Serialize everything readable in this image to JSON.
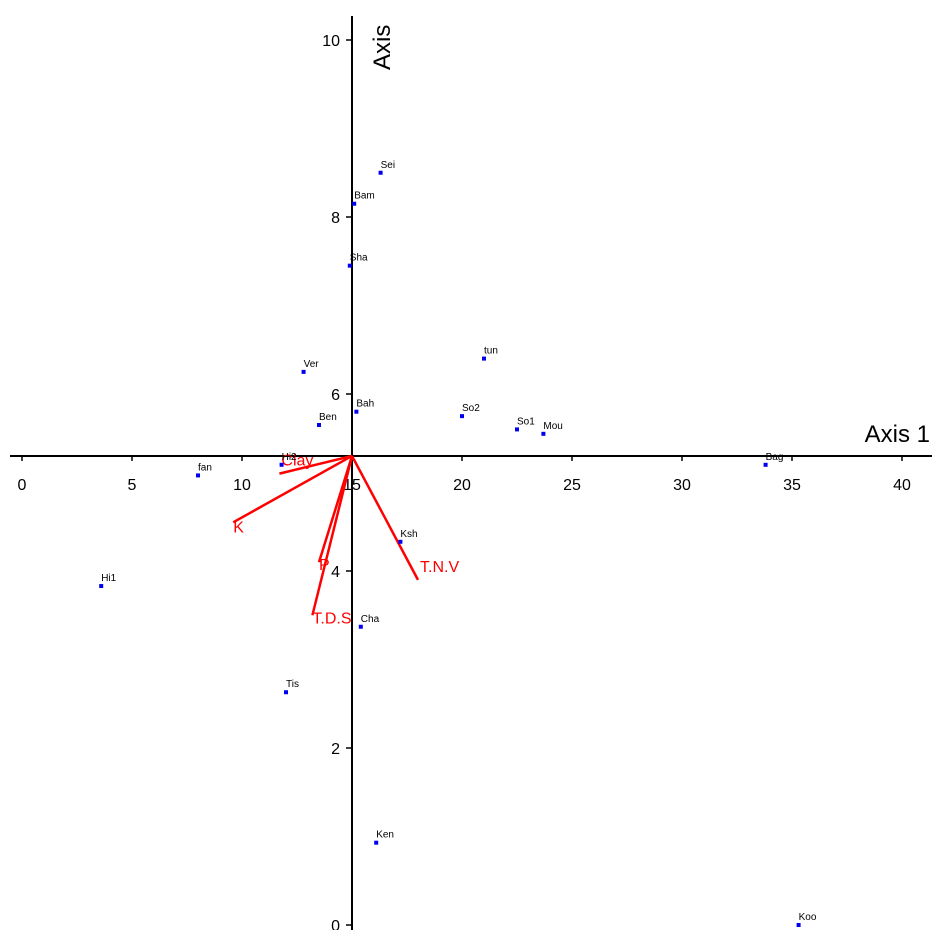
{
  "chart_data": {
    "type": "scatter",
    "xlabel": "Axis 1",
    "ylabel": "Axis",
    "xlim": [
      -0.3,
      41.2
    ],
    "ylim": [
      0,
      10.3
    ],
    "origin": [
      15,
      5.3
    ],
    "x_ticks": [
      "0",
      "5",
      "10",
      "15",
      "20",
      "25",
      "30",
      "35",
      "40"
    ],
    "x_tick_values": [
      0,
      5,
      10,
      15,
      20,
      25,
      30,
      35,
      40
    ],
    "y_ticks": [
      "0",
      "2",
      "4",
      "6",
      "8",
      "10"
    ],
    "y_tick_values": [
      0,
      2,
      4,
      6,
      8,
      10
    ],
    "grid": false,
    "point_color": "#0000ee",
    "vector_color": "#ff0000",
    "points": [
      {
        "label": "Sei",
        "x": 16.3,
        "y": 8.5
      },
      {
        "label": "Bam",
        "x": 15.1,
        "y": 8.15
      },
      {
        "label": "Sha",
        "x": 14.9,
        "y": 7.45
      },
      {
        "label": "tun",
        "x": 21.0,
        "y": 6.4
      },
      {
        "label": "Ver",
        "x": 12.8,
        "y": 6.25
      },
      {
        "label": "Bah",
        "x": 15.2,
        "y": 5.8
      },
      {
        "label": "So2",
        "x": 20.0,
        "y": 5.75
      },
      {
        "label": "Ben",
        "x": 13.5,
        "y": 5.65
      },
      {
        "label": "So1",
        "x": 22.5,
        "y": 5.6
      },
      {
        "label": "Mou",
        "x": 23.7,
        "y": 5.55
      },
      {
        "label": "Bag",
        "x": 33.8,
        "y": 5.2
      },
      {
        "label": "Hi2",
        "x": 11.8,
        "y": 5.2
      },
      {
        "label": "fan",
        "x": 8.0,
        "y": 5.08
      },
      {
        "label": "Ksh",
        "x": 17.2,
        "y": 4.33
      },
      {
        "label": "Hi1",
        "x": 3.6,
        "y": 3.83
      },
      {
        "label": "Cha",
        "x": 15.4,
        "y": 3.37
      },
      {
        "label": "Tis",
        "x": 12.0,
        "y": 2.63
      },
      {
        "label": "Ken",
        "x": 16.1,
        "y": 0.93
      },
      {
        "label": "Koo",
        "x": 35.3,
        "y": 0.0
      }
    ],
    "vectors": [
      {
        "label": "Clay",
        "x": 11.7,
        "y": 5.1
      },
      {
        "label": "K",
        "x": 9.6,
        "y": 4.55
      },
      {
        "label": "P",
        "x": 13.5,
        "y": 4.1
      },
      {
        "label": "T.D.S",
        "x": 13.2,
        "y": 3.5
      },
      {
        "label": "T.N.V",
        "x": 18.0,
        "y": 3.9
      }
    ]
  }
}
